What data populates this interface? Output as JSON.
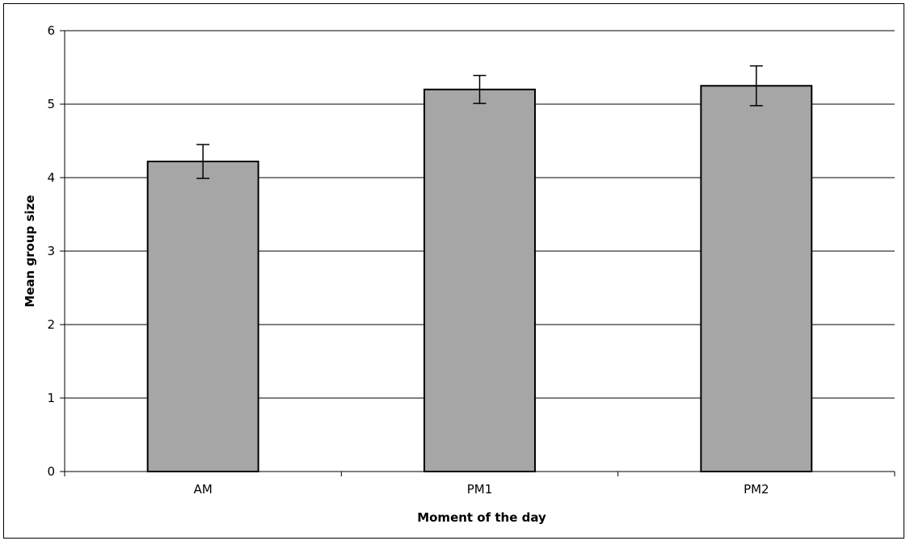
{
  "chart_data": {
    "type": "bar",
    "categories": [
      "AM",
      "PM1",
      "PM2"
    ],
    "values": [
      4.22,
      5.2,
      5.25
    ],
    "error_bars": [
      {
        "low": 3.99,
        "high": 4.45
      },
      {
        "low": 5.01,
        "high": 5.39
      },
      {
        "low": 4.98,
        "high": 5.52
      }
    ],
    "xlabel": "Moment of the day",
    "ylabel": "Mean group size",
    "ylim": [
      0,
      6
    ],
    "yticks": [
      0,
      1,
      2,
      3,
      4,
      5,
      6
    ],
    "grid": true,
    "legend": "none",
    "colors": {
      "bar_fill": "#a6a6a6",
      "bar_stroke": "#000000",
      "grid": "#000000"
    }
  }
}
